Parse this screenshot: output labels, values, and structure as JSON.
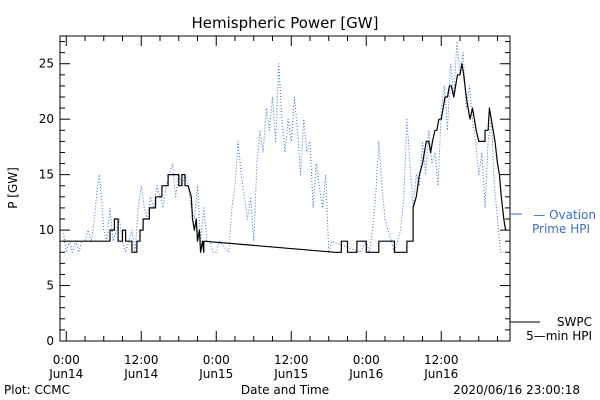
{
  "chart_data": {
    "type": "line",
    "title": "Hemispheric Power [GW]",
    "xlabel": "Date and Time",
    "ylabel": "P [GW]",
    "ylim": [
      0,
      27.5
    ],
    "xlim_hours": [
      -1,
      71
    ],
    "y_ticks": [
      0,
      5,
      10,
      15,
      20,
      25
    ],
    "x_ticks": [
      {
        "time": "0:00",
        "date": "Jun14"
      },
      {
        "time": "12:00",
        "date": "Jun14"
      },
      {
        "time": "0:00",
        "date": "Jun15"
      },
      {
        "time": "12:00",
        "date": "Jun15"
      },
      {
        "time": "0:00",
        "date": "Jun16"
      },
      {
        "time": "12:00",
        "date": "Jun16"
      }
    ],
    "grid": false,
    "series": [
      {
        "name": "Ovation Prime HPI",
        "style": "dotted",
        "color": "#3a6fc4",
        "points": [
          [
            -0.5,
            10
          ],
          [
            0,
            8
          ],
          [
            0.5,
            9
          ],
          [
            1,
            8
          ],
          [
            1.5,
            9
          ],
          [
            2,
            8
          ],
          [
            2.5,
            9
          ],
          [
            3,
            9
          ],
          [
            3.5,
            10
          ],
          [
            4,
            9
          ],
          [
            4.5,
            11
          ],
          [
            5,
            14
          ],
          [
            5.3,
            15
          ],
          [
            5.6,
            13
          ],
          [
            6,
            10
          ],
          [
            6.5,
            9
          ],
          [
            7,
            12
          ],
          [
            7.5,
            9
          ],
          [
            8,
            10
          ],
          [
            8.5,
            11
          ],
          [
            9,
            9
          ],
          [
            9.5,
            8
          ],
          [
            10,
            9
          ],
          [
            10.5,
            10
          ],
          [
            11,
            8
          ],
          [
            11.5,
            12
          ],
          [
            12,
            14
          ],
          [
            12.5,
            12
          ],
          [
            13,
            11
          ],
          [
            13.5,
            13
          ],
          [
            14,
            12
          ],
          [
            14.5,
            14
          ],
          [
            15,
            13
          ],
          [
            15.5,
            12
          ],
          [
            16,
            14
          ],
          [
            16.5,
            15
          ],
          [
            17,
            16
          ],
          [
            17.5,
            13
          ],
          [
            18,
            15
          ],
          [
            18.5,
            14
          ],
          [
            19,
            15
          ],
          [
            19.5,
            14
          ],
          [
            20,
            12
          ],
          [
            20.5,
            11
          ],
          [
            21,
            14
          ],
          [
            21.5,
            9
          ],
          [
            22,
            12
          ],
          [
            22.5,
            9
          ],
          [
            23,
            9
          ],
          [
            23.5,
            8
          ],
          [
            24,
            8
          ],
          [
            24.5,
            9
          ],
          [
            26,
            8
          ],
          [
            26.5,
            12
          ],
          [
            27,
            14
          ],
          [
            27.5,
            18
          ],
          [
            28,
            15
          ],
          [
            28.5,
            13
          ],
          [
            29,
            11
          ],
          [
            29.5,
            13
          ],
          [
            30,
            9
          ],
          [
            30.5,
            16
          ],
          [
            31,
            19
          ],
          [
            31.5,
            17
          ],
          [
            32,
            21
          ],
          [
            32.5,
            19
          ],
          [
            33,
            22
          ],
          [
            33.5,
            18
          ],
          [
            34,
            25
          ],
          [
            34.5,
            20
          ],
          [
            35,
            17
          ],
          [
            35.5,
            20
          ],
          [
            36,
            18
          ],
          [
            36.5,
            22
          ],
          [
            37,
            19
          ],
          [
            37.5,
            15
          ],
          [
            38,
            20
          ],
          [
            38.5,
            17
          ],
          [
            39,
            18
          ],
          [
            39.5,
            12
          ],
          [
            40,
            16
          ],
          [
            40.5,
            14
          ],
          [
            41,
            12
          ],
          [
            41.5,
            15
          ],
          [
            42,
            8
          ],
          [
            42.5,
            9
          ],
          [
            47,
            8
          ],
          [
            48,
            9
          ],
          [
            48.5,
            8
          ],
          [
            49,
            10
          ],
          [
            49.5,
            13
          ],
          [
            50,
            18
          ],
          [
            50.5,
            14
          ],
          [
            51,
            11
          ],
          [
            51.5,
            10
          ],
          [
            52,
            9
          ],
          [
            52.5,
            8
          ],
          [
            53,
            9
          ],
          [
            53.5,
            10
          ],
          [
            54,
            13
          ],
          [
            54.5,
            20
          ],
          [
            55,
            16
          ],
          [
            55.5,
            12
          ],
          [
            56,
            15
          ],
          [
            56.5,
            14
          ],
          [
            57,
            18
          ],
          [
            57.5,
            15
          ],
          [
            58,
            19
          ],
          [
            58.5,
            16
          ],
          [
            59,
            17
          ],
          [
            59.5,
            14
          ],
          [
            60,
            21
          ],
          [
            60.5,
            23
          ],
          [
            61,
            19
          ],
          [
            61.5,
            25
          ],
          [
            62,
            22
          ],
          [
            62.5,
            27
          ],
          [
            63,
            24
          ],
          [
            63.5,
            26
          ],
          [
            64,
            21
          ],
          [
            64.5,
            23
          ],
          [
            65,
            20
          ],
          [
            65.5,
            18
          ],
          [
            66,
            15
          ],
          [
            66.5,
            17
          ],
          [
            67,
            12
          ],
          [
            67.5,
            18
          ],
          [
            68,
            20
          ],
          [
            68.5,
            14
          ],
          [
            69,
            11
          ],
          [
            69.5,
            8
          ],
          [
            70,
            8
          ]
        ]
      },
      {
        "name": "SWPC 5-min HPI",
        "style": "solid",
        "color": "#000000",
        "points": [
          [
            -0.5,
            9
          ],
          [
            7,
            9
          ],
          [
            7,
            10
          ],
          [
            7.7,
            10
          ],
          [
            7.7,
            11
          ],
          [
            8.3,
            11
          ],
          [
            8.3,
            9
          ],
          [
            9,
            9
          ],
          [
            9,
            10
          ],
          [
            9.5,
            10
          ],
          [
            9.5,
            9
          ],
          [
            10.5,
            9
          ],
          [
            10.5,
            8
          ],
          [
            11.3,
            8
          ],
          [
            11.3,
            9
          ],
          [
            11.8,
            9
          ],
          [
            11.8,
            10
          ],
          [
            12.3,
            10
          ],
          [
            12.3,
            11
          ],
          [
            13.3,
            11
          ],
          [
            13.3,
            12
          ],
          [
            14.3,
            12
          ],
          [
            14.3,
            13
          ],
          [
            15.3,
            13
          ],
          [
            15.3,
            14
          ],
          [
            16.3,
            14
          ],
          [
            16.3,
            15
          ],
          [
            18,
            15
          ],
          [
            18,
            14
          ],
          [
            18.5,
            14
          ],
          [
            18.5,
            15
          ],
          [
            19,
            15
          ],
          [
            19,
            14
          ],
          [
            19.5,
            14
          ],
          [
            20,
            13
          ],
          [
            20.2,
            11
          ],
          [
            20.5,
            10
          ],
          [
            20.8,
            11
          ],
          [
            21,
            9
          ],
          [
            21.3,
            10
          ],
          [
            21.5,
            8
          ],
          [
            21.8,
            9
          ],
          [
            22,
            8
          ],
          [
            22,
            9
          ],
          [
            43,
            8
          ],
          [
            44,
            8
          ],
          [
            44,
            9
          ],
          [
            45,
            9
          ],
          [
            45,
            8
          ],
          [
            46.5,
            8
          ],
          [
            46.5,
            9
          ],
          [
            48,
            9
          ],
          [
            48,
            8
          ],
          [
            50,
            8
          ],
          [
            50,
            9
          ],
          [
            52.5,
            9
          ],
          [
            52.5,
            8
          ],
          [
            54.5,
            8
          ],
          [
            54.5,
            9
          ],
          [
            55.5,
            9
          ],
          [
            55.5,
            12
          ],
          [
            56,
            13
          ],
          [
            56.5,
            15
          ],
          [
            57,
            16
          ],
          [
            57.3,
            17
          ],
          [
            57.6,
            18
          ],
          [
            58,
            18
          ],
          [
            58.3,
            17
          ],
          [
            58.6,
            18
          ],
          [
            59,
            19
          ],
          [
            59.3,
            19
          ],
          [
            59.6,
            20
          ],
          [
            60,
            20
          ],
          [
            60.3,
            21
          ],
          [
            60.6,
            22
          ],
          [
            61,
            22
          ],
          [
            61.3,
            23
          ],
          [
            61.6,
            23
          ],
          [
            62,
            22
          ],
          [
            62.3,
            23
          ],
          [
            62.6,
            24
          ],
          [
            63,
            24
          ],
          [
            63.3,
            25
          ],
          [
            63.6,
            24
          ],
          [
            64,
            22
          ],
          [
            64.3,
            21
          ],
          [
            64.6,
            20
          ],
          [
            65,
            21
          ],
          [
            65.3,
            20
          ],
          [
            65.6,
            19
          ],
          [
            66,
            18
          ],
          [
            67,
            18
          ],
          [
            67,
            19
          ],
          [
            67.5,
            19
          ],
          [
            67.7,
            21
          ],
          [
            68,
            20
          ],
          [
            68.3,
            19
          ],
          [
            68.6,
            18
          ],
          [
            69,
            16
          ],
          [
            69.3,
            15
          ],
          [
            69.6,
            13
          ],
          [
            70,
            11
          ],
          [
            70.3,
            10
          ]
        ]
      }
    ]
  },
  "legend": {
    "ovation_line1": "— Ovation",
    "ovation_line2": "Prime HPI",
    "swpc_line1": "SWPC",
    "swpc_line2": "5—min HPI"
  },
  "footer": {
    "left": "Plot: CCMC",
    "right": "2020/06/16 23:00:18"
  }
}
